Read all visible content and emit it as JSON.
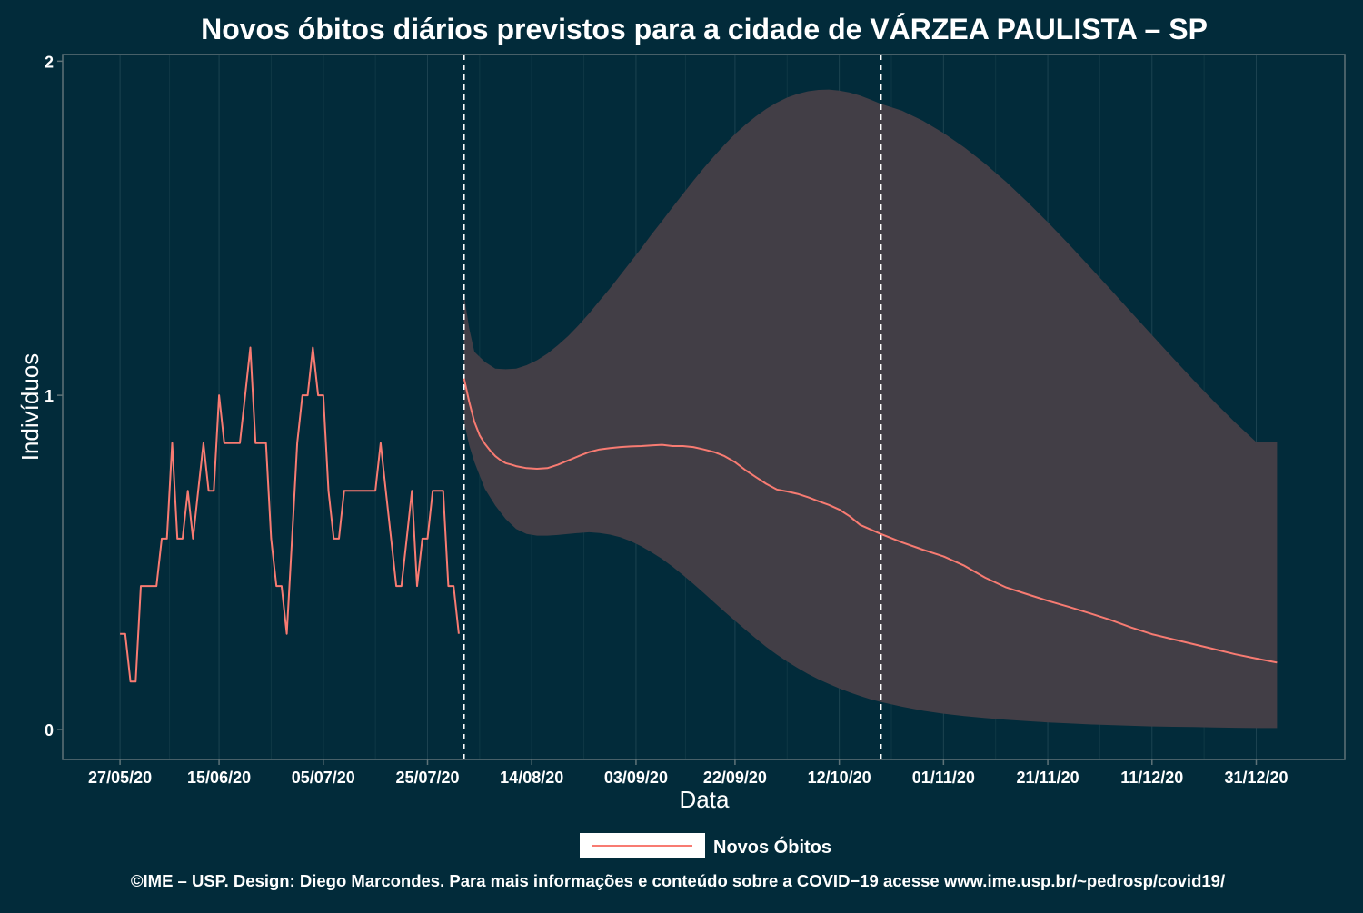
{
  "chart_data": {
    "type": "line",
    "title": "Novos óbitos diários previstos para a cidade de VÁRZEA PAULISTA – SP",
    "xlabel": "Data",
    "ylabel": "Indivíduos",
    "x_ticks": [
      "27/05/20",
      "15/06/20",
      "05/07/20",
      "25/07/20",
      "14/08/20",
      "03/09/20",
      "22/09/20",
      "12/10/20",
      "01/11/20",
      "21/11/20",
      "11/12/20",
      "31/12/20"
    ],
    "x_tick_days": [
      0,
      19,
      39,
      59,
      79,
      99,
      118,
      138,
      158,
      178,
      198,
      218
    ],
    "y_ticks": [
      "0",
      "1",
      "2"
    ],
    "ylim": [
      -0.09,
      2.02
    ],
    "xlim": [
      -11,
      235
    ],
    "vlines_day": [
      66,
      146
    ],
    "legend": {
      "position": "bottom",
      "entries": [
        "Novos Óbitos"
      ]
    },
    "series": [
      {
        "name": "Novos Óbitos",
        "color": "#f87b72",
        "observed": {
          "days": [
            0,
            1,
            2,
            3,
            4,
            5,
            6,
            7,
            8,
            9,
            10,
            11,
            12,
            13,
            14,
            15,
            16,
            17,
            18,
            19,
            20,
            21,
            22,
            23,
            24,
            25,
            26,
            27,
            28,
            29,
            30,
            31,
            32,
            33,
            34,
            35,
            36,
            37,
            38,
            39,
            40,
            41,
            42,
            43,
            44,
            45,
            46,
            47,
            48,
            49,
            50,
            51,
            52,
            53,
            54,
            55,
            56,
            57,
            58,
            59,
            60,
            61,
            62,
            63,
            64,
            65
          ],
          "values": [
            0.286,
            0.286,
            0.143,
            0.143,
            0.429,
            0.429,
            0.429,
            0.429,
            0.571,
            0.571,
            0.857,
            0.571,
            0.571,
            0.714,
            0.571,
            0.714,
            0.857,
            0.714,
            0.714,
            1.0,
            0.857,
            0.857,
            0.857,
            0.857,
            1.0,
            1.143,
            0.857,
            0.857,
            0.857,
            0.571,
            0.429,
            0.429,
            0.286,
            0.571,
            0.857,
            1.0,
            1.0,
            1.143,
            1.0,
            1.0,
            0.714,
            0.571,
            0.571,
            0.714,
            0.714,
            0.714,
            0.714,
            0.714,
            0.714,
            0.714,
            0.857,
            0.714,
            0.571,
            0.429,
            0.429,
            0.571,
            0.714,
            0.429,
            0.571,
            0.571,
            0.714,
            0.714,
            0.714,
            0.429,
            0.429,
            0.286
          ]
        },
        "forecast": {
          "days": [
            66,
            67,
            68,
            69,
            70,
            71,
            72,
            73,
            74,
            75,
            76,
            78,
            80,
            82,
            84,
            86,
            88,
            90,
            92,
            94,
            96,
            98,
            100,
            102,
            104,
            106,
            108,
            110,
            112,
            114,
            116,
            118,
            120,
            122,
            124,
            126,
            128,
            130,
            132,
            134,
            136,
            138,
            140,
            142,
            146,
            150,
            154,
            158,
            162,
            166,
            170,
            174,
            178,
            182,
            186,
            190,
            194,
            198,
            202,
            206,
            210,
            214,
            218,
            222
          ],
          "values": [
            1.05,
            0.98,
            0.92,
            0.88,
            0.855,
            0.835,
            0.818,
            0.806,
            0.797,
            0.793,
            0.788,
            0.782,
            0.78,
            0.782,
            0.792,
            0.805,
            0.818,
            0.83,
            0.838,
            0.842,
            0.845,
            0.847,
            0.848,
            0.85,
            0.852,
            0.848,
            0.848,
            0.845,
            0.838,
            0.83,
            0.818,
            0.8,
            0.776,
            0.755,
            0.735,
            0.718,
            0.712,
            0.705,
            0.695,
            0.683,
            0.672,
            0.658,
            0.638,
            0.612,
            0.585,
            0.56,
            0.538,
            0.518,
            0.49,
            0.454,
            0.425,
            0.405,
            0.385,
            0.367,
            0.348,
            0.328,
            0.305,
            0.285,
            0.27,
            0.255,
            0.24,
            0.225,
            0.212,
            0.2
          ]
        },
        "band": {
          "days": [
            66,
            67,
            68,
            70,
            72,
            74,
            76,
            78,
            80,
            82,
            84,
            86,
            88,
            90,
            92,
            94,
            96,
            98,
            100,
            102,
            104,
            106,
            108,
            110,
            112,
            114,
            116,
            118,
            120,
            122,
            124,
            126,
            128,
            130,
            132,
            134,
            136,
            138,
            140,
            142,
            144,
            146,
            150,
            154,
            158,
            162,
            166,
            170,
            174,
            178,
            182,
            186,
            190,
            194,
            198,
            202,
            206,
            210,
            214,
            218,
            222
          ],
          "upper": [
            1.3,
            1.2,
            1.13,
            1.1,
            1.08,
            1.078,
            1.08,
            1.09,
            1.105,
            1.125,
            1.15,
            1.178,
            1.21,
            1.245,
            1.283,
            1.32,
            1.36,
            1.4,
            1.44,
            1.482,
            1.522,
            1.563,
            1.603,
            1.642,
            1.68,
            1.716,
            1.75,
            1.782,
            1.81,
            1.835,
            1.857,
            1.876,
            1.891,
            1.902,
            1.91,
            1.914,
            1.915,
            1.912,
            1.906,
            1.897,
            1.885,
            1.872,
            1.852,
            1.822,
            1.785,
            1.742,
            1.693,
            1.639,
            1.58,
            1.518,
            1.453,
            1.386,
            1.318,
            1.249,
            1.18,
            1.112,
            1.045,
            0.98,
            0.918,
            0.86,
            0.86
          ],
          "lower": [
            0.92,
            0.85,
            0.8,
            0.72,
            0.67,
            0.63,
            0.6,
            0.585,
            0.58,
            0.58,
            0.582,
            0.585,
            0.588,
            0.59,
            0.588,
            0.583,
            0.575,
            0.563,
            0.548,
            0.53,
            0.51,
            0.487,
            0.462,
            0.436,
            0.408,
            0.38,
            0.352,
            0.325,
            0.298,
            0.272,
            0.247,
            0.224,
            0.203,
            0.184,
            0.166,
            0.15,
            0.136,
            0.123,
            0.111,
            0.1,
            0.09,
            0.082,
            0.068,
            0.056,
            0.047,
            0.04,
            0.034,
            0.029,
            0.025,
            0.021,
            0.018,
            0.015,
            0.013,
            0.011,
            0.009,
            0.008,
            0.007,
            0.006,
            0.005,
            0.004,
            0.004
          ]
        }
      }
    ]
  },
  "footer": {
    "credit": "©IME – USP. Design: Diego Marcondes. Para mais informações e conteúdo sobre a COVID−19 acesse www.ime.usp.br/~pedrosp/covid19/"
  }
}
